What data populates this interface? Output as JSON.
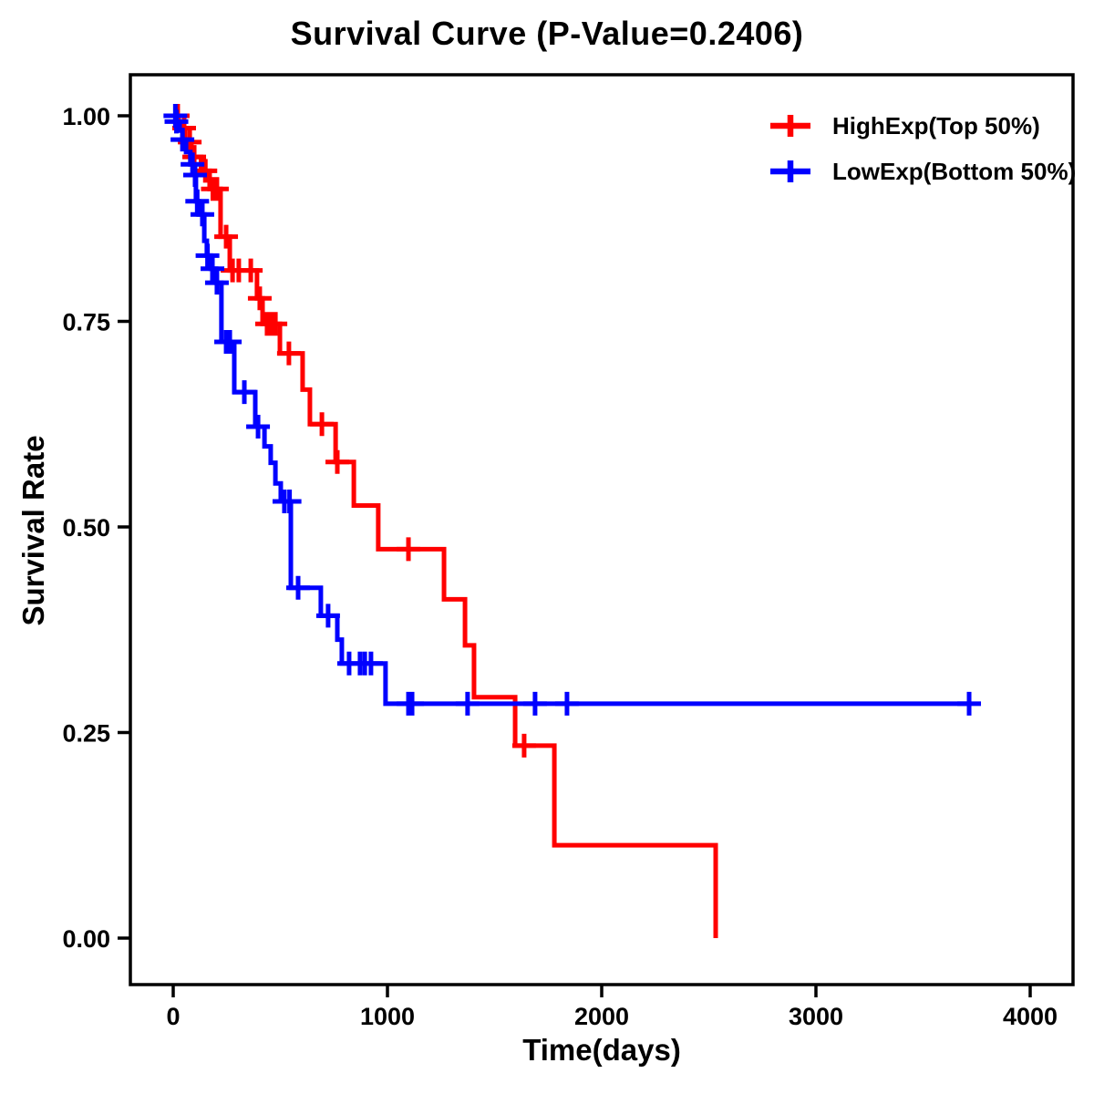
{
  "title": "Survival Curve (P-Value=0.2406)",
  "chart_data": {
    "type": "line",
    "subtype": "kaplan_meier_step_curve",
    "title": "Survival Curve (P-Value=0.2406)",
    "p_value": "0.2406",
    "xlabel": "Time(days)",
    "ylabel": "Survival Rate",
    "x_ticks": [
      0,
      1000,
      2000,
      3000,
      4000
    ],
    "x_tick_labels": [
      "0",
      "1000",
      "2000",
      "3000",
      "4000"
    ],
    "y_ticks": [
      0,
      0.25,
      0.5,
      0.75,
      1
    ],
    "y_tick_labels": [
      "0.00",
      "0.25",
      "0.50",
      "0.75",
      "1.00"
    ],
    "xlim": [
      -200,
      4200
    ],
    "ylim": [
      -0.055,
      1.05
    ],
    "grid": false,
    "frame": true,
    "axis_color": "#000000",
    "text_color": "#000000",
    "legend": {
      "position": "top-right-inside",
      "entries": [
        {
          "label": "HighExp(Top 50%)",
          "color": "#FF0000",
          "marker": "plus-line"
        },
        {
          "label": "LowExp(Bottom 50%)",
          "color": "#0000FF",
          "marker": "plus-line"
        }
      ]
    },
    "series": [
      {
        "id": "highexp",
        "name": "HighExp(Top 50%)",
        "color": "#FF0000",
        "end_time": 2532,
        "steps": [
          [
            0,
            1.0
          ],
          [
            25,
            0.985
          ],
          [
            55,
            0.968
          ],
          [
            85,
            0.95
          ],
          [
            130,
            0.933
          ],
          [
            170,
            0.911
          ],
          [
            221,
            0.853
          ],
          [
            264,
            0.812
          ],
          [
            391,
            0.778
          ],
          [
            417,
            0.747
          ],
          [
            498,
            0.711
          ],
          [
            604,
            0.667
          ],
          [
            638,
            0.625
          ],
          [
            758,
            0.579
          ],
          [
            843,
            0.526
          ],
          [
            957,
            0.473
          ],
          [
            1264,
            0.412
          ],
          [
            1362,
            0.356
          ],
          [
            1404,
            0.293
          ],
          [
            1596,
            0.234
          ],
          [
            1779,
            0.113
          ],
          [
            2532,
            0.0
          ]
        ],
        "censors": [
          [
            21,
            1.0
          ],
          [
            51,
            0.985
          ],
          [
            77,
            0.968
          ],
          [
            98,
            0.95
          ],
          [
            150,
            0.933
          ],
          [
            185,
            0.911
          ],
          [
            204,
            0.911
          ],
          [
            247,
            0.853
          ],
          [
            277,
            0.812
          ],
          [
            306,
            0.812
          ],
          [
            362,
            0.812
          ],
          [
            404,
            0.778
          ],
          [
            438,
            0.747
          ],
          [
            458,
            0.747
          ],
          [
            477,
            0.747
          ],
          [
            540,
            0.711
          ],
          [
            694,
            0.625
          ],
          [
            766,
            0.579
          ],
          [
            1098,
            0.473
          ],
          [
            1638,
            0.234
          ]
        ]
      },
      {
        "id": "lowexp",
        "name": "LowExp(Bottom 50%)",
        "color": "#0000FF",
        "end_time": 3715,
        "steps": [
          [
            0,
            1.0
          ],
          [
            13,
            0.993
          ],
          [
            30,
            0.982
          ],
          [
            43,
            0.971
          ],
          [
            60,
            0.956
          ],
          [
            80,
            0.941
          ],
          [
            98,
            0.928
          ],
          [
            106,
            0.896
          ],
          [
            119,
            0.88
          ],
          [
            145,
            0.848
          ],
          [
            157,
            0.83
          ],
          [
            175,
            0.814
          ],
          [
            200,
            0.797
          ],
          [
            225,
            0.725
          ],
          [
            285,
            0.664
          ],
          [
            383,
            0.622
          ],
          [
            426,
            0.598
          ],
          [
            455,
            0.578
          ],
          [
            477,
            0.553
          ],
          [
            502,
            0.531
          ],
          [
            549,
            0.426
          ],
          [
            689,
            0.392
          ],
          [
            766,
            0.363
          ],
          [
            787,
            0.334
          ],
          [
            991,
            0.285
          ]
        ],
        "censors": [
          [
            10,
            1.0
          ],
          [
            15,
            0.993
          ],
          [
            43,
            0.971
          ],
          [
            90,
            0.941
          ],
          [
            102,
            0.928
          ],
          [
            112,
            0.896
          ],
          [
            136,
            0.88
          ],
          [
            160,
            0.83
          ],
          [
            183,
            0.814
          ],
          [
            204,
            0.797
          ],
          [
            247,
            0.725
          ],
          [
            264,
            0.725
          ],
          [
            332,
            0.664
          ],
          [
            396,
            0.622
          ],
          [
            519,
            0.531
          ],
          [
            543,
            0.531
          ],
          [
            583,
            0.426
          ],
          [
            723,
            0.392
          ],
          [
            821,
            0.334
          ],
          [
            872,
            0.334
          ],
          [
            894,
            0.334
          ],
          [
            923,
            0.334
          ],
          [
            1098,
            0.285
          ],
          [
            1115,
            0.285
          ],
          [
            1374,
            0.285
          ],
          [
            1689,
            0.285
          ],
          [
            1838,
            0.285
          ],
          [
            3715,
            0.285
          ]
        ]
      }
    ]
  }
}
